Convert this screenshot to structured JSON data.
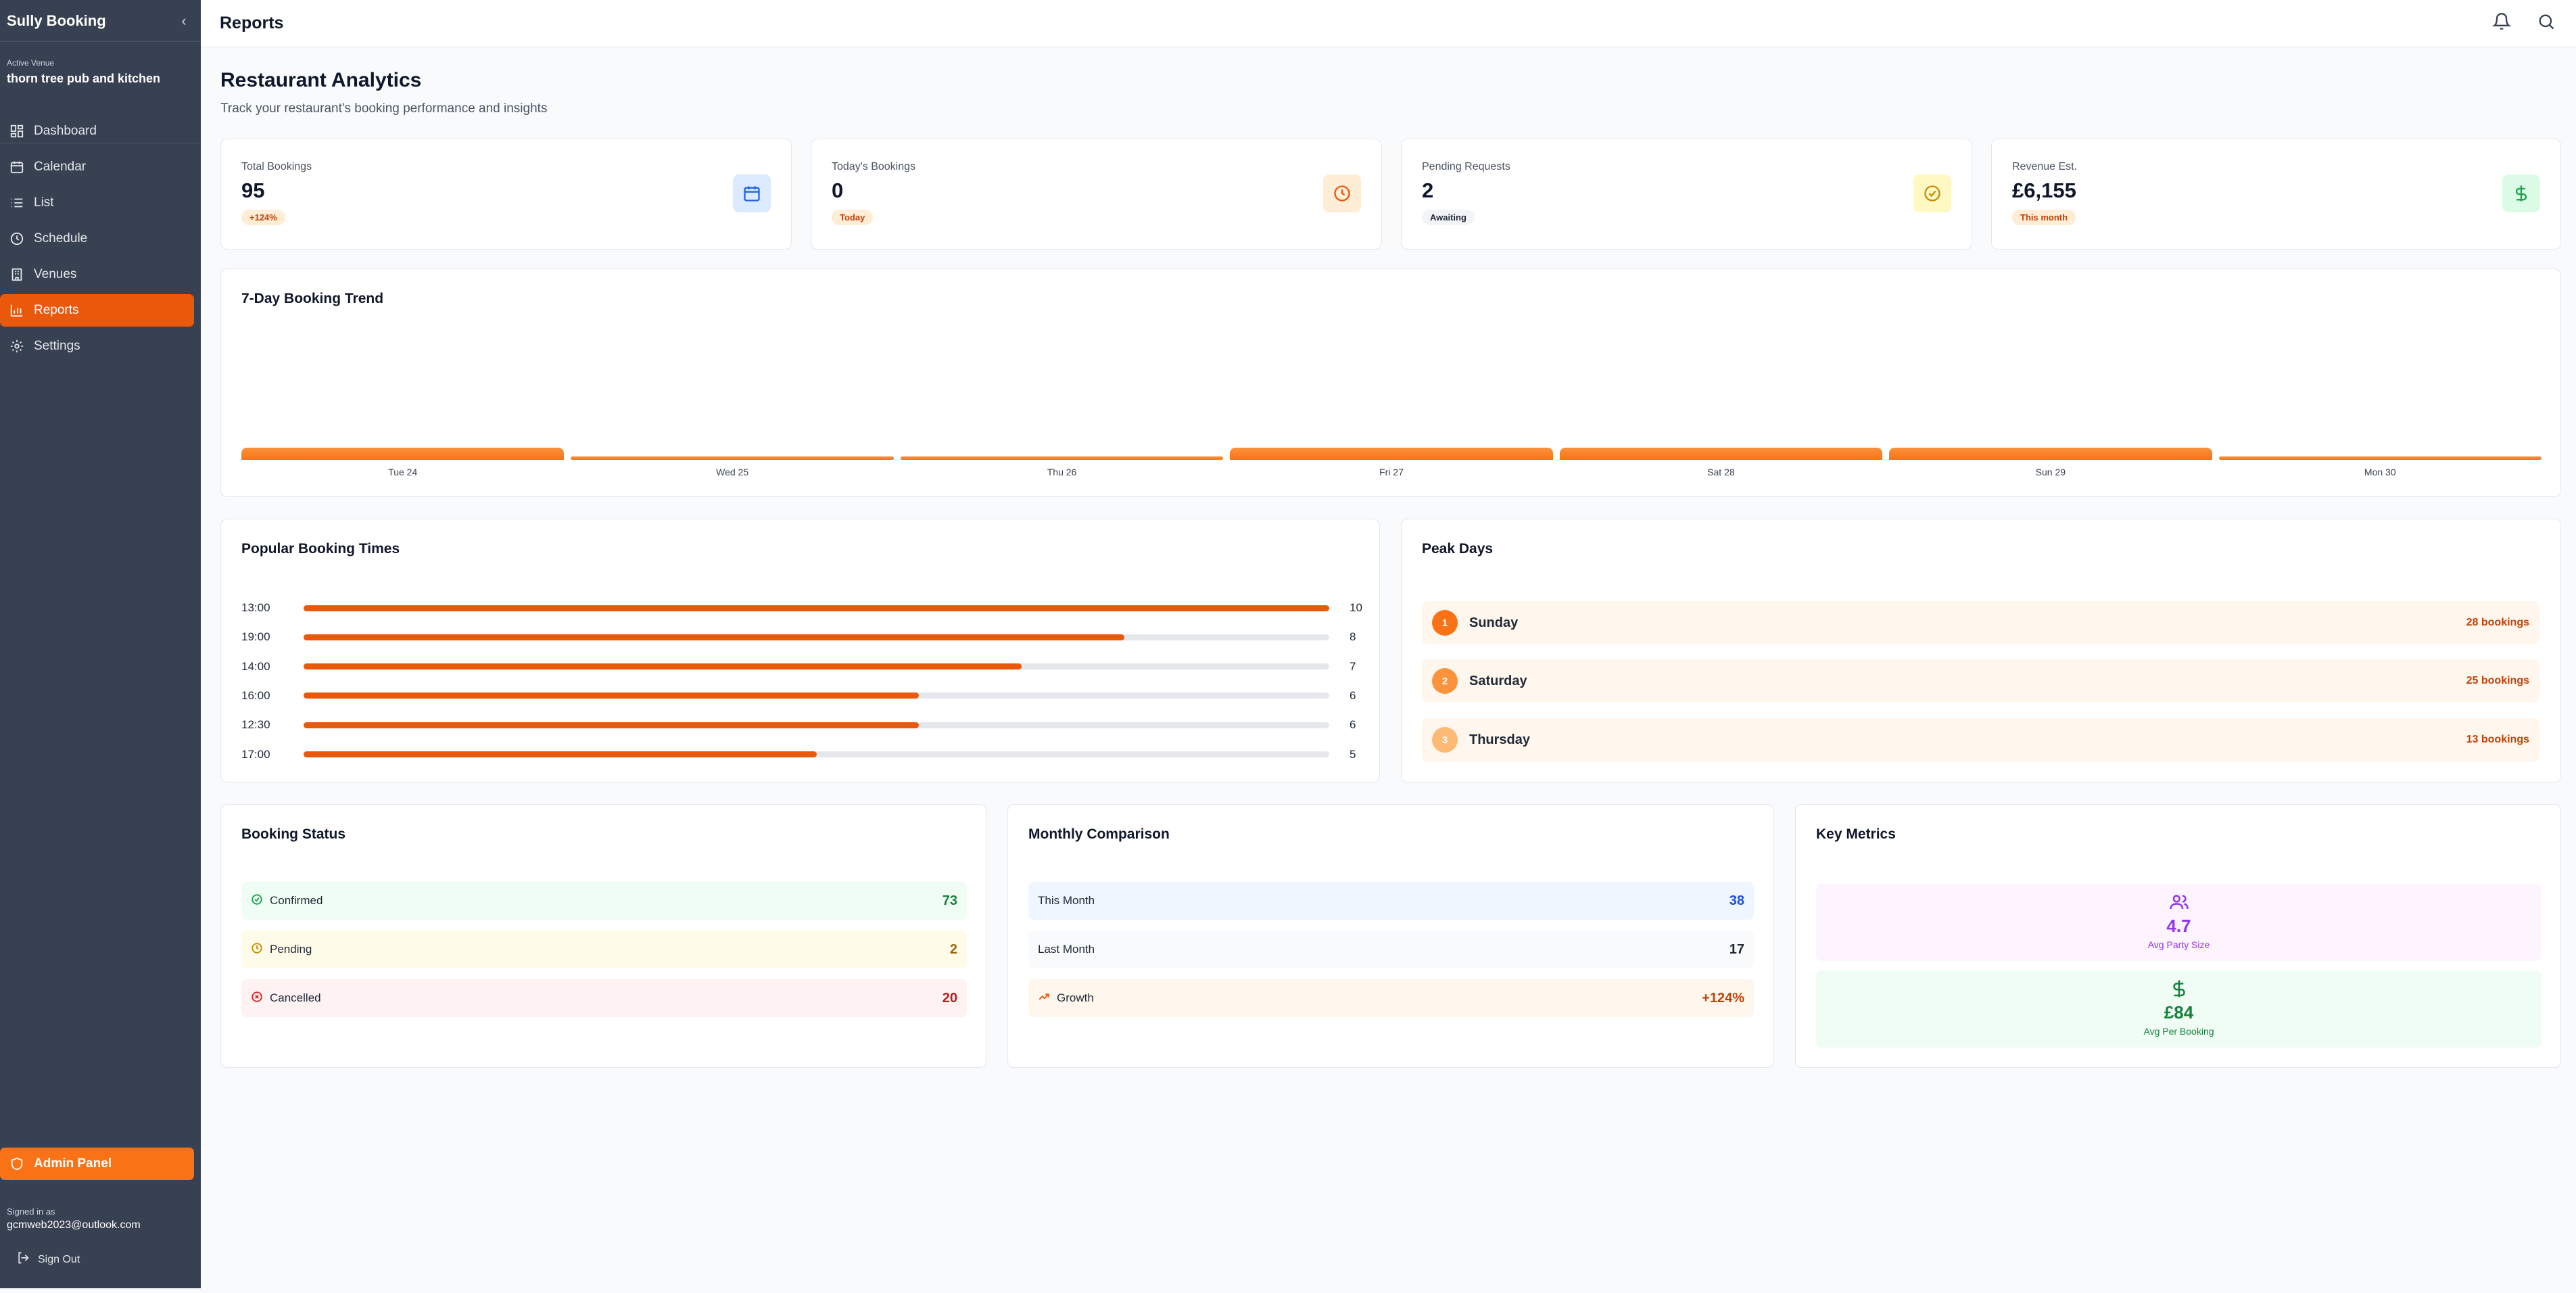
{
  "sidebar": {
    "brand": "Sully Booking",
    "collapse_icon": "chevron-left-icon",
    "venue_label": "Active Venue",
    "venue_name": "thorn tree pub and kitchen",
    "nav": [
      {
        "label": "Dashboard",
        "icon": "dashboard-icon"
      },
      {
        "label": "Calendar",
        "icon": "calendar-icon"
      },
      {
        "label": "List",
        "icon": "list-icon"
      },
      {
        "label": "Schedule",
        "icon": "clock-icon"
      },
      {
        "label": "Venues",
        "icon": "building-icon"
      },
      {
        "label": "Reports",
        "icon": "bar-chart-icon",
        "active": true
      },
      {
        "label": "Settings",
        "icon": "gear-icon"
      }
    ],
    "admin_label": "Admin Panel",
    "signed_label": "Signed in as",
    "signed_email": "gcmweb2023@outlook.com",
    "signout_label": "Sign Out"
  },
  "topbar": {
    "title": "Reports"
  },
  "page": {
    "title": "Restaurant Analytics",
    "subtitle": "Track your restaurant's booking performance and insights"
  },
  "stats": [
    {
      "label": "Total Bookings",
      "value": "95",
      "badge": "+124%",
      "icon": "calendar-icon"
    },
    {
      "label": "Today's Bookings",
      "value": "0",
      "badge": "Today",
      "icon": "clock-icon"
    },
    {
      "label": "Pending Requests",
      "value": "2",
      "badge": "Awaiting",
      "icon": "check-circle-icon"
    },
    {
      "label": "Revenue Est.",
      "value": "£6,155",
      "badge": "This month",
      "icon": "dollar-icon"
    }
  ],
  "trend": {
    "title": "7-Day Booking Trend"
  },
  "chart_data": {
    "type": "bar",
    "title": "7-Day Booking Trend",
    "categories": [
      "Tue 24",
      "Wed 25",
      "Thu 26",
      "Fri 27",
      "Sat 28",
      "Sun 29",
      "Mon 30"
    ],
    "values": [
      1,
      0,
      0,
      1,
      1,
      1,
      0
    ],
    "xlabel": "",
    "ylabel": ""
  },
  "popular_times": {
    "title": "Popular Booking Times",
    "rows": [
      {
        "time": "13:00",
        "count": "10",
        "value": 10
      },
      {
        "time": "19:00",
        "count": "8",
        "value": 8
      },
      {
        "time": "14:00",
        "count": "7",
        "value": 7
      },
      {
        "time": "16:00",
        "count": "6",
        "value": 6
      },
      {
        "time": "12:30",
        "count": "6",
        "value": 6
      },
      {
        "time": "17:00",
        "count": "5",
        "value": 5
      }
    ],
    "max": 10
  },
  "peak_days": {
    "title": "Peak Days",
    "rows": [
      {
        "rank": "1",
        "day": "Sunday",
        "count": "28 bookings"
      },
      {
        "rank": "2",
        "day": "Saturday",
        "count": "25 bookings"
      },
      {
        "rank": "3",
        "day": "Thursday",
        "count": "13 bookings"
      }
    ]
  },
  "booking_status": {
    "title": "Booking Status",
    "rows": [
      {
        "label": "Confirmed",
        "value": "73"
      },
      {
        "label": "Pending",
        "value": "2"
      },
      {
        "label": "Cancelled",
        "value": "20"
      }
    ]
  },
  "monthly": {
    "title": "Monthly Comparison",
    "rows": [
      {
        "label": "This Month",
        "value": "38"
      },
      {
        "label": "Last Month",
        "value": "17"
      },
      {
        "label": "Growth",
        "value": "+124%"
      }
    ]
  },
  "key_metrics": {
    "title": "Key Metrics",
    "items": [
      {
        "value": "4.7",
        "label": "Avg Party Size",
        "icon": "users-icon"
      },
      {
        "value": "£84",
        "label": "Avg Per Booking",
        "icon": "dollar-icon"
      }
    ]
  },
  "colors": {
    "accent": "#ea580c",
    "sidebar": "#374151"
  }
}
